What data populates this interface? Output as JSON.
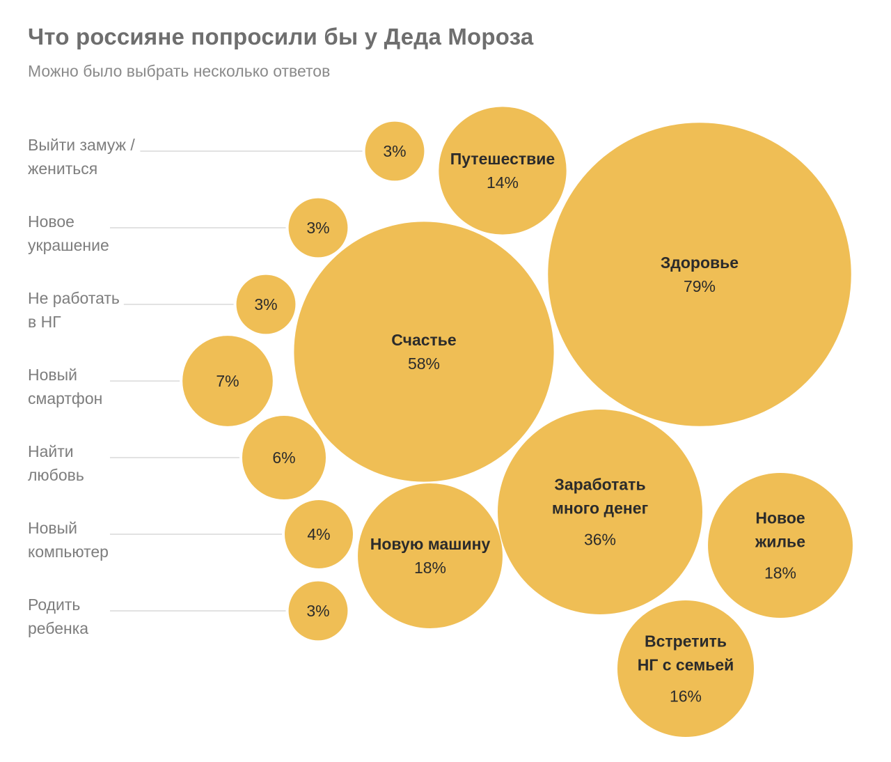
{
  "title": "Что россияне попросили бы у Деда Мороза",
  "subtitle": "Можно было выбрать несколько ответов",
  "colors": {
    "bubble": "#efbe55",
    "text": "#2b2b2b",
    "label": "#7d7d7d",
    "title": "#6e6e6e"
  },
  "chart_data": {
    "type": "bubble",
    "title": "Что россияне попросили бы у Деда Мороза",
    "subtitle": "Можно было выбрать несколько ответов",
    "unit": "%",
    "categories": [
      {
        "name": "Выйти замуж / жениться",
        "lines": [
          "Выйти замуж /",
          "жениться"
        ],
        "value": 3,
        "label": "3%",
        "labeled": "side"
      },
      {
        "name": "Новое украшение",
        "lines": [
          "Новое",
          "украшение"
        ],
        "value": 3,
        "label": "3%",
        "labeled": "side"
      },
      {
        "name": "Не работать в НГ",
        "lines": [
          "Не работать",
          "в НГ"
        ],
        "value": 3,
        "label": "3%",
        "labeled": "side"
      },
      {
        "name": "Новый смартфон",
        "lines": [
          "Новый",
          "смартфон"
        ],
        "value": 7,
        "label": "7%",
        "labeled": "side"
      },
      {
        "name": "Найти любовь",
        "lines": [
          "Найти",
          "любовь"
        ],
        "value": 6,
        "label": "6%",
        "labeled": "side"
      },
      {
        "name": "Новый компьютер",
        "lines": [
          "Новый",
          "компьютер"
        ],
        "value": 4,
        "label": "4%",
        "labeled": "side"
      },
      {
        "name": "Родить ребенка",
        "lines": [
          "Родить",
          "ребенка"
        ],
        "value": 3,
        "label": "3%",
        "labeled": "side"
      },
      {
        "name": "Путешествие",
        "lines": [
          "Путешествие"
        ],
        "value": 14,
        "label": "14%",
        "labeled": "inside"
      },
      {
        "name": "Здоровье",
        "lines": [
          "Здоровье"
        ],
        "value": 79,
        "label": "79%",
        "labeled": "inside"
      },
      {
        "name": "Счастье",
        "lines": [
          "Счастье"
        ],
        "value": 58,
        "label": "58%",
        "labeled": "inside"
      },
      {
        "name": "Заработать много денег",
        "lines": [
          "Заработать",
          "много денег"
        ],
        "value": 36,
        "label": "36%",
        "labeled": "inside"
      },
      {
        "name": "Новое жилье",
        "lines": [
          "Новое",
          "жилье"
        ],
        "value": 18,
        "label": "18%",
        "labeled": "inside"
      },
      {
        "name": "Новую машину",
        "lines": [
          "Новую машину"
        ],
        "value": 18,
        "label": "18%",
        "labeled": "inside"
      },
      {
        "name": "Встретить НГ с семьей",
        "lines": [
          "Встретить",
          "НГ с семьей"
        ],
        "value": 16,
        "label": "16%",
        "labeled": "inside"
      }
    ]
  }
}
